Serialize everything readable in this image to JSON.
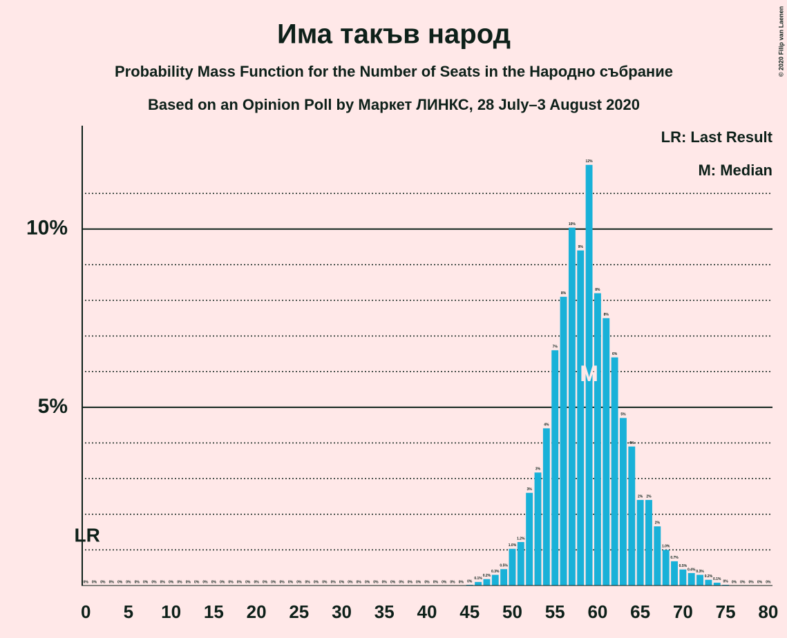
{
  "chart_data": {
    "type": "bar",
    "title": "Има такъв народ",
    "subtitle": "Probability Mass Function for the Number of Seats in the Народно събрание",
    "subtitle2": "Based on an Opinion Poll by Маркет ЛИНКС, 28 July–3 August 2020",
    "copyright": "© 2020 Filip van Laenen",
    "legend": [
      "LR: Last Result",
      "M: Median"
    ],
    "last_result": {
      "label": "LR",
      "seat": 0
    },
    "median": {
      "label": "M",
      "seat": 59
    },
    "color": "#19b1d8",
    "x": [
      0,
      1,
      2,
      3,
      4,
      5,
      6,
      7,
      8,
      9,
      10,
      11,
      12,
      13,
      14,
      15,
      16,
      17,
      18,
      19,
      20,
      21,
      22,
      23,
      24,
      25,
      26,
      27,
      28,
      29,
      30,
      31,
      32,
      33,
      34,
      35,
      36,
      37,
      38,
      39,
      40,
      41,
      42,
      43,
      44,
      45,
      46,
      47,
      48,
      49,
      50,
      51,
      52,
      53,
      54,
      55,
      56,
      57,
      58,
      59,
      60,
      61,
      62,
      63,
      64,
      65,
      66,
      67,
      68,
      69,
      70,
      71,
      72,
      73,
      74,
      75,
      76,
      77,
      78,
      79,
      80
    ],
    "values": [
      0,
      0,
      0,
      0,
      0,
      0,
      0,
      0,
      0,
      0,
      0,
      0,
      0,
      0,
      0,
      0,
      0,
      0,
      0,
      0,
      0,
      0,
      0,
      0,
      0,
      0,
      0,
      0,
      0,
      0,
      0,
      0,
      0,
      0,
      0,
      0,
      0,
      0,
      0,
      0,
      0,
      0,
      0,
      0,
      0,
      0.02,
      0.1,
      0.18,
      0.3,
      0.46,
      1.03,
      1.22,
      2.6,
      3.17,
      4.41,
      6.6,
      8.1,
      10.04,
      9.4,
      11.8,
      8.2,
      7.5,
      6.4,
      4.7,
      3.9,
      2.4,
      2.4,
      1.66,
      1.0,
      0.68,
      0.45,
      0.35,
      0.3,
      0.16,
      0.08,
      0.02,
      0,
      0,
      0,
      0,
      0
    ],
    "value_labels": [
      "0%",
      "0%",
      "0%",
      "0%",
      "0%",
      "0%",
      "0%",
      "0%",
      "0%",
      "0%",
      "0%",
      "0%",
      "0%",
      "0%",
      "0%",
      "0%",
      "0%",
      "0%",
      "0%",
      "0%",
      "0%",
      "0%",
      "0%",
      "0%",
      "0%",
      "0%",
      "0%",
      "0%",
      "0%",
      "0%",
      "0%",
      "0%",
      "0%",
      "0%",
      "0%",
      "0%",
      "0%",
      "0%",
      "0%",
      "0%",
      "0%",
      "0%",
      "0%",
      "0%",
      "0%",
      "0%",
      "0.1%",
      "0.2%",
      "0.3%",
      "0.5%",
      "1.0%",
      "1.2%",
      "3%",
      "3%",
      "4%",
      "7%",
      "8%",
      "10%",
      "9%",
      "12%",
      "8%",
      "8%",
      "6%",
      "5%",
      "4%",
      "2%",
      "2%",
      "2%",
      "1.0%",
      "0.7%",
      "0.5%",
      "0.4%",
      "0.3%",
      "0.2%",
      "0.1%",
      "0%",
      "0%",
      "0%",
      "0%",
      "0%",
      "0%"
    ],
    "xlim": [
      -0.5,
      80.5
    ],
    "xticks": [
      0,
      5,
      10,
      15,
      20,
      25,
      30,
      35,
      40,
      45,
      50,
      55,
      60,
      65,
      70,
      75,
      80
    ],
    "ylim": [
      0,
      12.9
    ],
    "yticks": [
      {
        "value": 5,
        "label": "5%"
      },
      {
        "value": 10,
        "label": "10%"
      }
    ],
    "minor_grid": [
      1,
      2,
      3,
      4,
      6,
      7,
      8,
      9,
      11
    ],
    "grid": true
  }
}
